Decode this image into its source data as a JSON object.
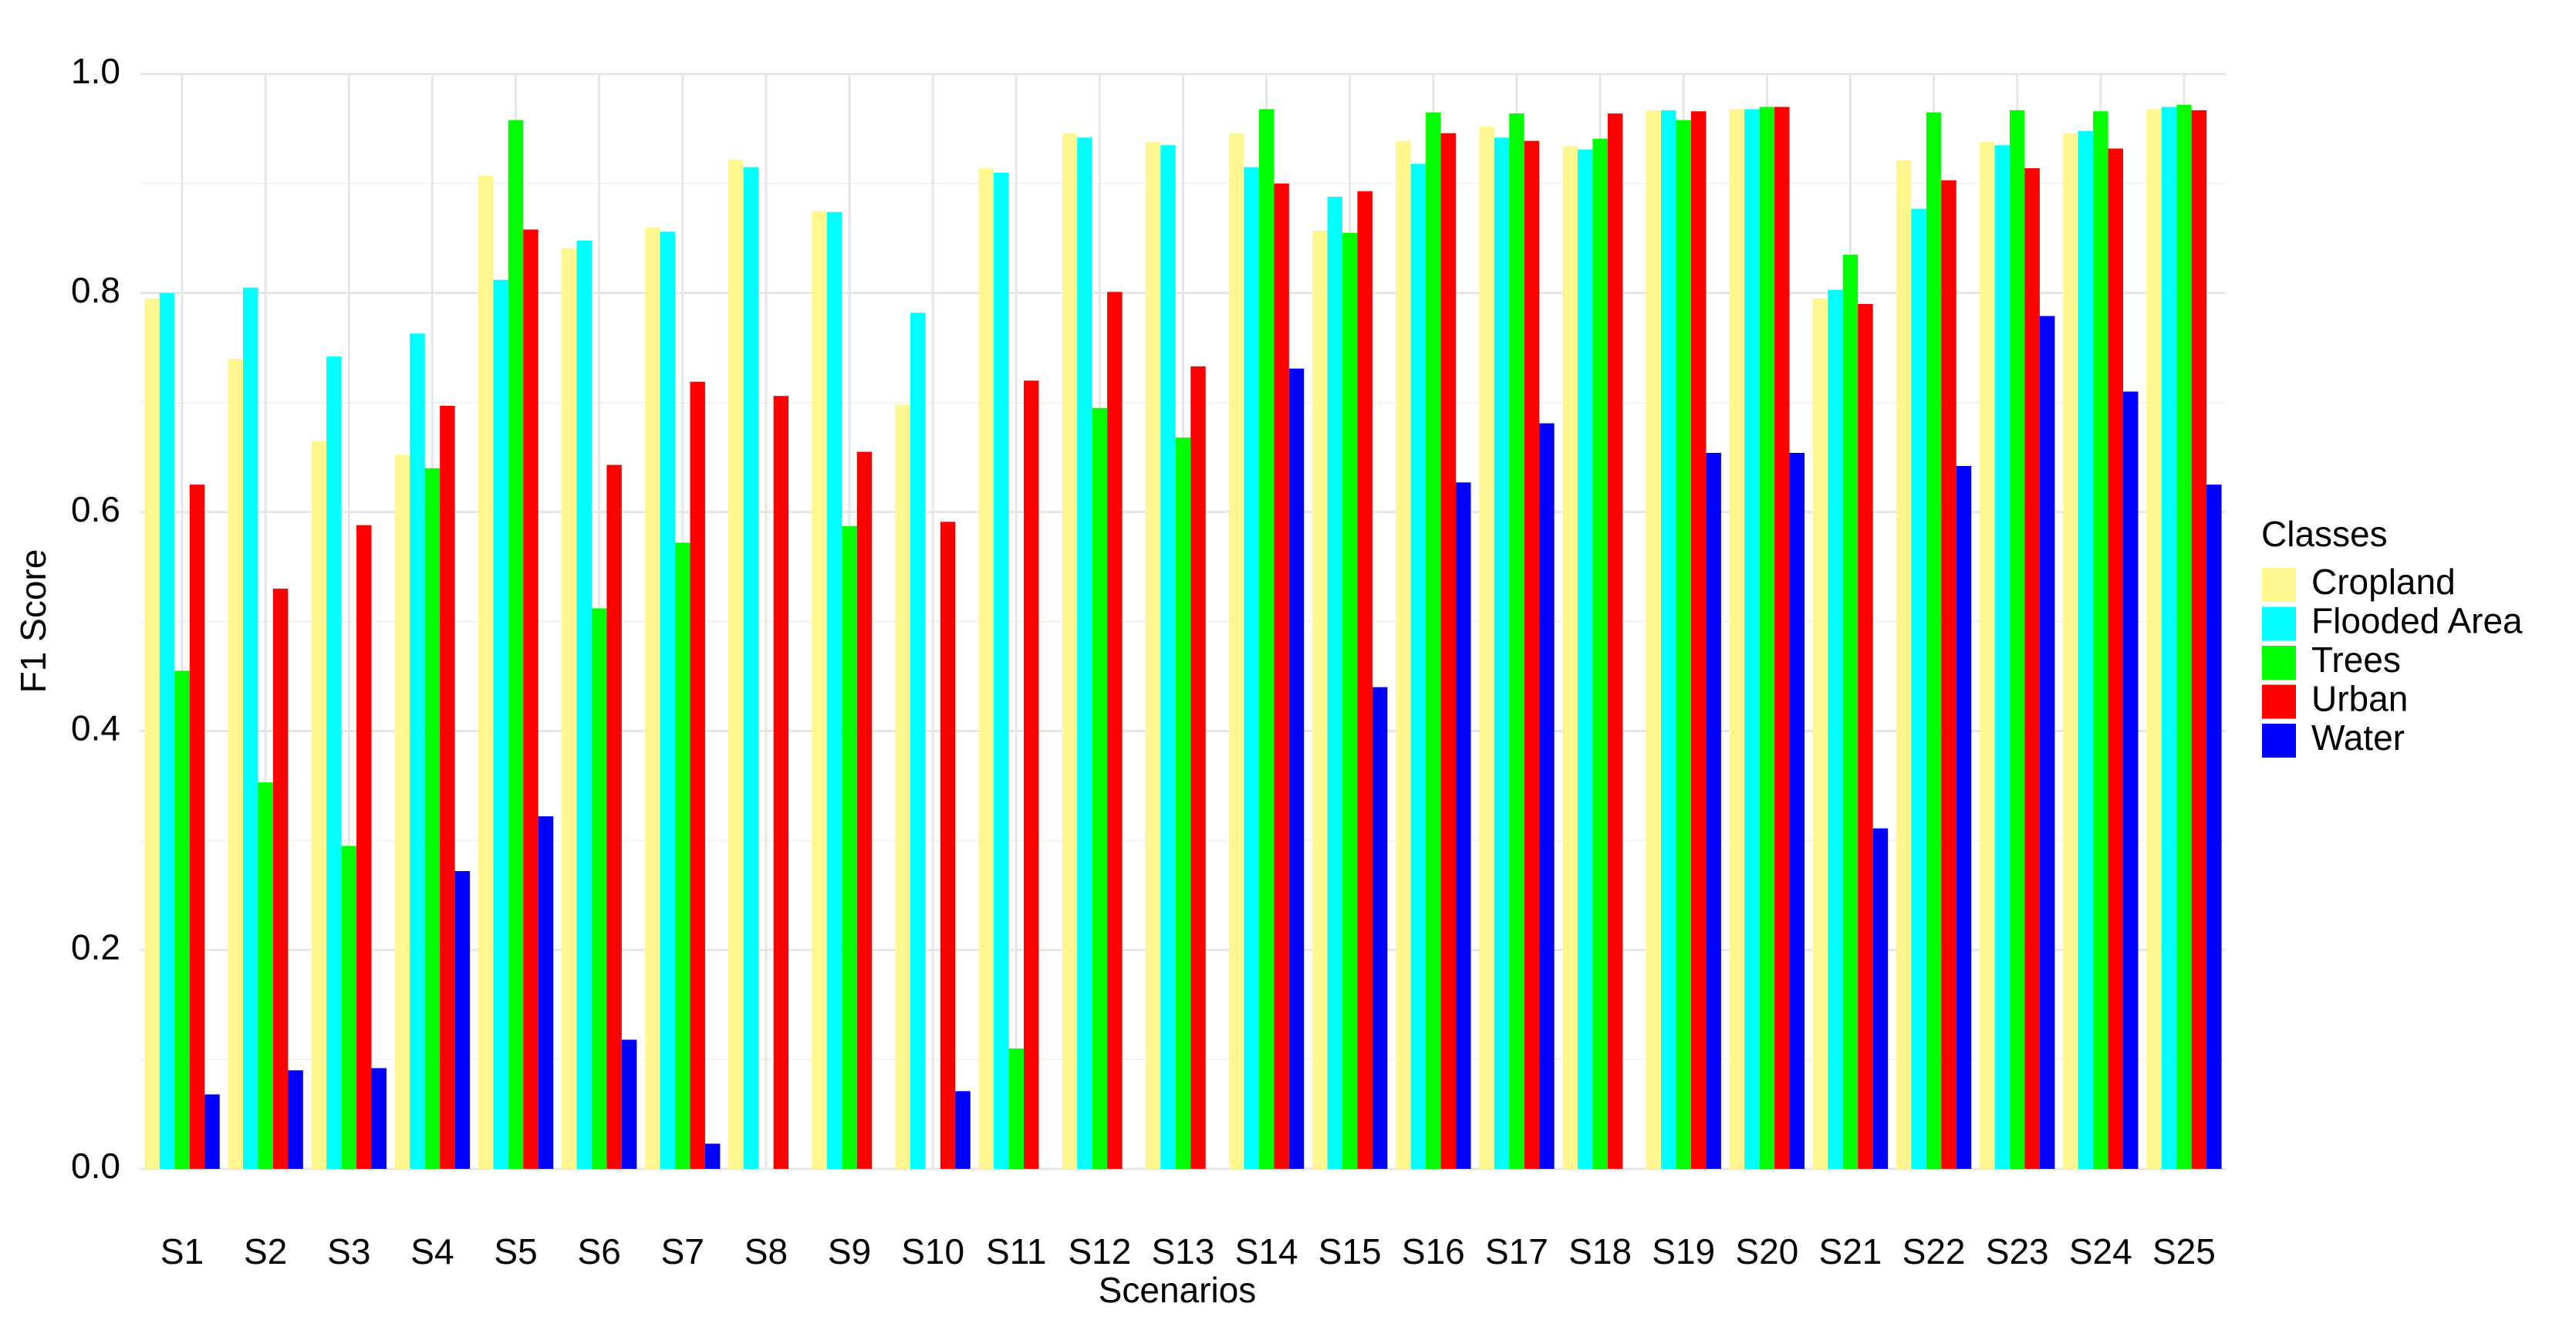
{
  "chart_data": {
    "type": "bar",
    "x_label": "Scenarios",
    "y_label": "F1 Score",
    "legend_title": "Classes",
    "legend_position": "right",
    "grid": true,
    "categories": [
      "S1",
      "S2",
      "S3",
      "S4",
      "S5",
      "S6",
      "S7",
      "S8",
      "S9",
      "S10",
      "S11",
      "S12",
      "S13",
      "S14",
      "S15",
      "S16",
      "S17",
      "S18",
      "S19",
      "S20",
      "S21",
      "S22",
      "S23",
      "S24",
      "S25"
    ],
    "ylim": [
      0,
      1.0
    ],
    "yticks": [
      {
        "value": 0,
        "label": "0.0"
      },
      0.2,
      0.4,
      0.6,
      0.8,
      {
        "value": 1.0,
        "label": "1.0"
      }
    ],
    "series": [
      {
        "name": "Cropland",
        "color": "#fff68f",
        "values": [
          0.795,
          0.74,
          0.665,
          0.652,
          0.907,
          0.841,
          0.86,
          0.922,
          0.875,
          0.698,
          0.914,
          0.946,
          0.938,
          0.946,
          0.857,
          0.939,
          0.952,
          0.934,
          0.967,
          0.968,
          0.795,
          0.921,
          0.938,
          0.946,
          0.968
        ]
      },
      {
        "name": "Flooded Area",
        "color": "#00ffff",
        "values": [
          0.8,
          0.805,
          0.742,
          0.763,
          0.812,
          0.848,
          0.856,
          0.915,
          0.874,
          0.782,
          0.91,
          0.942,
          0.935,
          0.915,
          0.888,
          0.918,
          0.942,
          0.931,
          0.967,
          0.968,
          0.803,
          0.877,
          0.935,
          0.948,
          0.97
        ]
      },
      {
        "name": "Trees",
        "color": "#00ff00",
        "values": [
          0.455,
          0.353,
          0.295,
          0.64,
          0.958,
          0.512,
          0.572,
          null,
          0.587,
          null,
          0.11,
          0.695,
          0.668,
          0.968,
          0.855,
          0.965,
          0.964,
          0.941,
          0.958,
          0.97,
          0.835,
          0.965,
          0.967,
          0.966,
          0.972
        ]
      },
      {
        "name": "Urban",
        "color": "#ff0000",
        "values": [
          0.625,
          0.53,
          0.588,
          0.697,
          0.858,
          0.643,
          0.719,
          0.706,
          0.655,
          0.591,
          0.72,
          0.801,
          0.733,
          0.9,
          0.893,
          0.946,
          0.939,
          0.964,
          0.966,
          0.97,
          0.79,
          0.903,
          0.914,
          0.932,
          0.967
        ]
      },
      {
        "name": "Water",
        "color": "#0000ff",
        "values": [
          0.068,
          0.09,
          0.092,
          0.272,
          0.322,
          0.118,
          0.023,
          null,
          null,
          0.071,
          null,
          null,
          null,
          0.731,
          0.44,
          0.627,
          0.681,
          null,
          0.654,
          0.654,
          0.311,
          0.642,
          0.779,
          0.71,
          0.625
        ]
      }
    ]
  }
}
